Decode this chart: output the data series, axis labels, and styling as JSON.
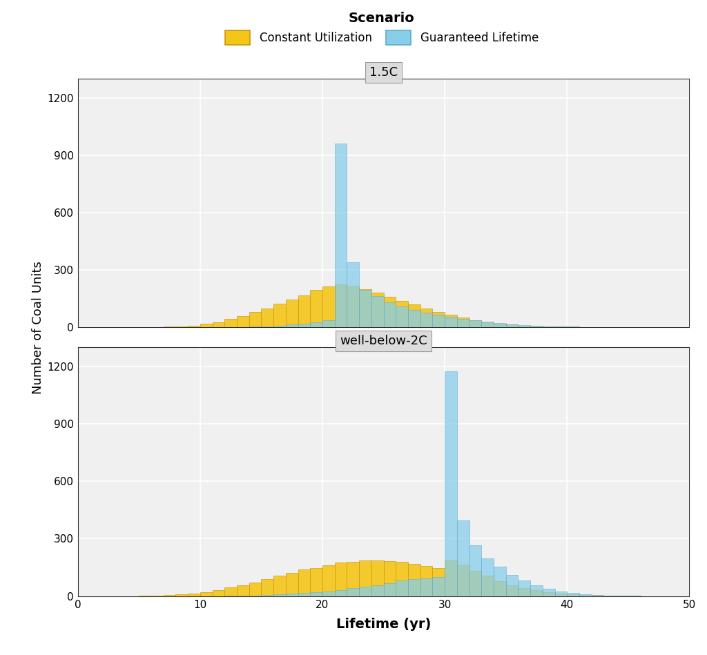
{
  "panel_titles": [
    "1.5C",
    "well-below-2C"
  ],
  "xlabel": "Lifetime (yr)",
  "ylabel": "Number of Coal Units",
  "xlim": [
    0,
    50
  ],
  "ylim": [
    0,
    1300
  ],
  "yticks": [
    0,
    300,
    600,
    900,
    1200
  ],
  "xticks": [
    0,
    10,
    20,
    30,
    40,
    50
  ],
  "bar_width": 1.0,
  "color_orange": "#F5C518",
  "color_orange_edge": "#C8960C",
  "color_blue": "#87CEEB",
  "color_blue_edge": "#60AACC",
  "alpha_orange": 0.9,
  "alpha_blue": 0.75,
  "panel_bg": "#DCDCDC",
  "plot_bg": "#F0F0F0",
  "grid_color": "#FFFFFF",
  "legend_title": "Scenario",
  "legend_labels": [
    "Constant Utilization",
    "Guaranteed Lifetime"
  ],
  "panel1_orange_bins": [
    5,
    6,
    7,
    8,
    9,
    10,
    11,
    12,
    13,
    14,
    15,
    16,
    17,
    18,
    19,
    20,
    21,
    22,
    23,
    24,
    25,
    26,
    27,
    28,
    29,
    30,
    31,
    32,
    33,
    34,
    35,
    36,
    37,
    38,
    39,
    40,
    41,
    42,
    43,
    44,
    45,
    46,
    47,
    48,
    49
  ],
  "panel1_orange_counts": [
    1,
    2,
    4,
    6,
    10,
    18,
    28,
    45,
    60,
    82,
    100,
    122,
    145,
    168,
    195,
    215,
    225,
    218,
    200,
    182,
    160,
    140,
    120,
    100,
    82,
    65,
    50,
    38,
    28,
    20,
    14,
    10,
    8,
    6,
    4,
    3,
    2,
    1,
    1,
    1,
    0,
    0,
    0,
    0,
    0
  ],
  "panel1_blue_bins": [
    5,
    6,
    7,
    8,
    9,
    10,
    11,
    12,
    13,
    14,
    15,
    16,
    17,
    18,
    19,
    20,
    21,
    22,
    23,
    24,
    25,
    26,
    27,
    28,
    29,
    30,
    31,
    32,
    33,
    34,
    35,
    36,
    37,
    38,
    39,
    40,
    41,
    42,
    43,
    44,
    45,
    46,
    47,
    48,
    49
  ],
  "panel1_blue_counts": [
    0,
    0,
    0,
    0,
    0,
    0,
    0,
    1,
    2,
    4,
    6,
    10,
    14,
    20,
    28,
    38,
    960,
    340,
    195,
    162,
    130,
    108,
    90,
    78,
    65,
    55,
    45,
    38,
    30,
    22,
    16,
    12,
    9,
    6,
    4,
    3,
    2,
    1,
    1,
    0,
    0,
    0,
    0,
    0,
    1
  ],
  "panel2_orange_bins": [
    5,
    6,
    7,
    8,
    9,
    10,
    11,
    12,
    13,
    14,
    15,
    16,
    17,
    18,
    19,
    20,
    21,
    22,
    23,
    24,
    25,
    26,
    27,
    28,
    29,
    30,
    31,
    32,
    33,
    34,
    35,
    36,
    37,
    38,
    39,
    40,
    41,
    42,
    43,
    44,
    45
  ],
  "panel2_orange_counts": [
    1,
    2,
    4,
    8,
    12,
    20,
    30,
    45,
    58,
    72,
    88,
    108,
    120,
    140,
    148,
    162,
    175,
    178,
    185,
    185,
    182,
    178,
    168,
    158,
    145,
    190,
    165,
    132,
    105,
    78,
    58,
    42,
    30,
    20,
    14,
    9,
    6,
    4,
    2,
    1,
    1
  ],
  "panel2_blue_bins": [
    5,
    6,
    7,
    8,
    9,
    10,
    11,
    12,
    13,
    14,
    15,
    16,
    17,
    18,
    19,
    20,
    21,
    22,
    23,
    24,
    25,
    26,
    27,
    28,
    29,
    30,
    31,
    32,
    33,
    34,
    35,
    36,
    37,
    38,
    39,
    40,
    41,
    42,
    43,
    44,
    45
  ],
  "panel2_blue_counts": [
    0,
    0,
    0,
    0,
    0,
    0,
    0,
    1,
    2,
    3,
    5,
    8,
    12,
    15,
    20,
    25,
    32,
    40,
    48,
    58,
    68,
    80,
    88,
    92,
    98,
    1175,
    395,
    265,
    198,
    152,
    110,
    80,
    58,
    38,
    22,
    15,
    10,
    6,
    3,
    2,
    1
  ]
}
